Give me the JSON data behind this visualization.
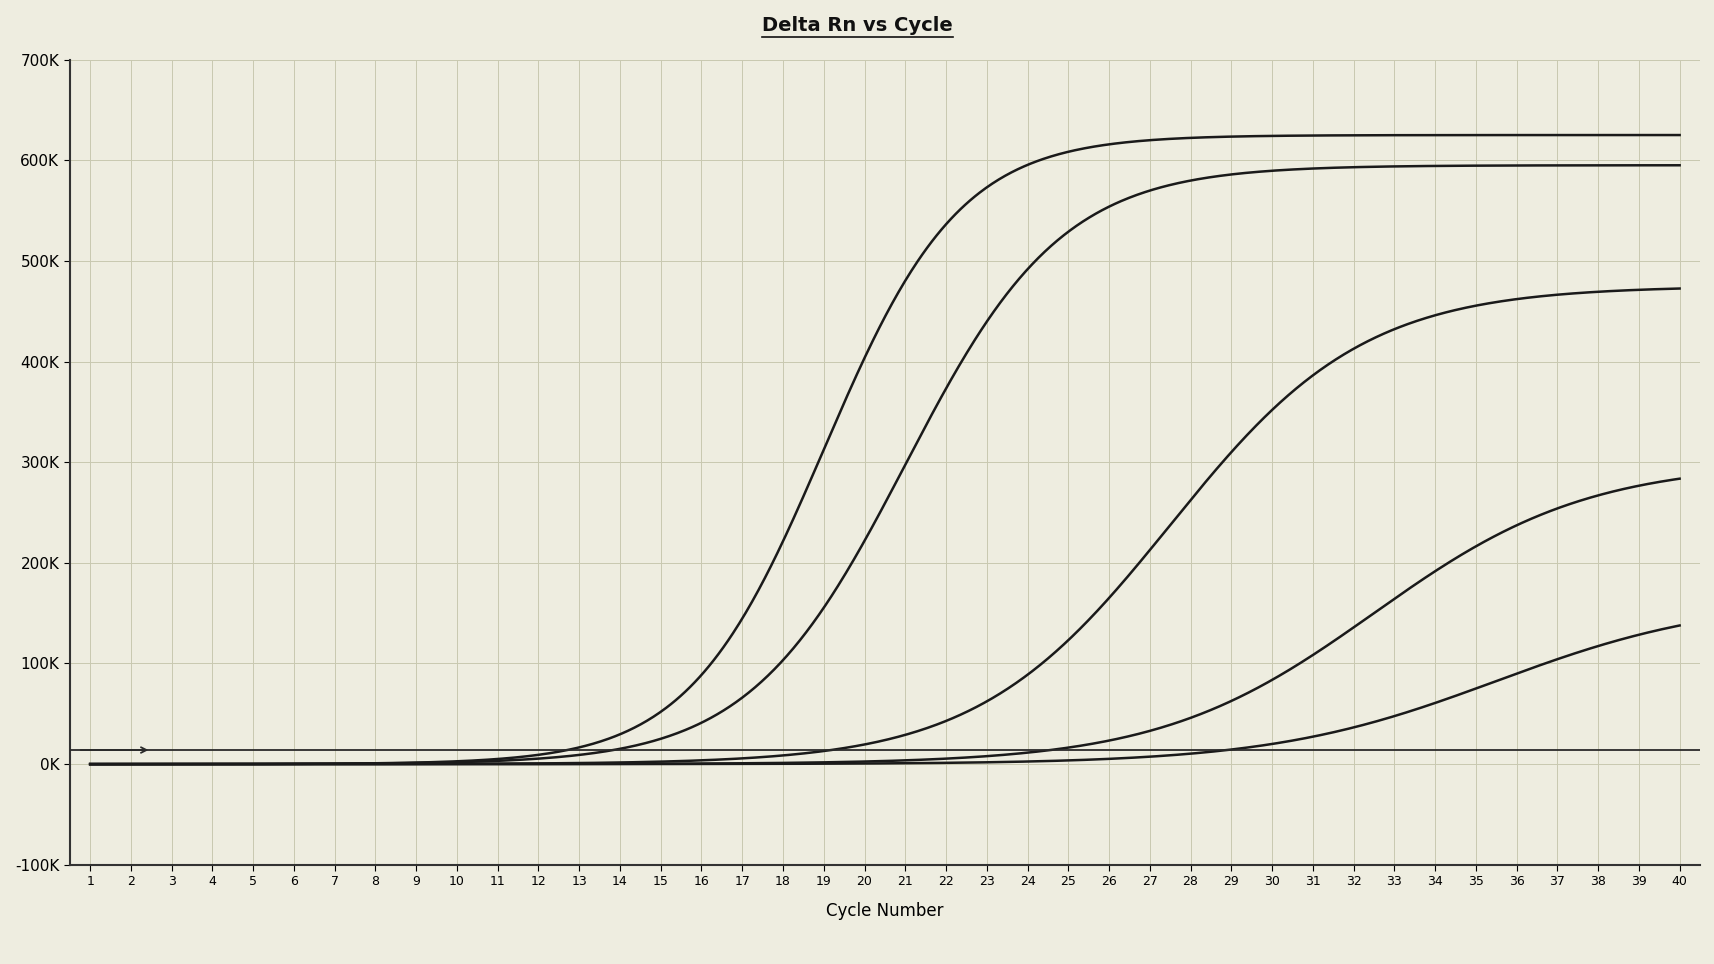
{
  "title": "Delta Rn vs Cycle",
  "xlabel": "Cycle Number",
  "xlim_min": 0.5,
  "xlim_max": 40.5,
  "ylim_min": -100000,
  "ylim_max": 700000,
  "yticks": [
    -100000,
    0,
    100000,
    200000,
    300000,
    400000,
    500000,
    600000,
    700000
  ],
  "ytick_labels": [
    "-100K",
    "0K",
    "100K",
    "200K",
    "300K",
    "400K",
    "500K",
    "600K",
    "700K"
  ],
  "xticks": [
    1,
    2,
    3,
    4,
    5,
    6,
    7,
    8,
    9,
    10,
    11,
    12,
    13,
    14,
    15,
    16,
    17,
    18,
    19,
    20,
    21,
    22,
    23,
    24,
    25,
    26,
    27,
    28,
    29,
    30,
    31,
    32,
    33,
    34,
    35,
    36,
    37,
    38,
    39,
    40
  ],
  "bg_color": "#eeede0",
  "grid_color": "#c8c8b0",
  "line_color": "#1a1a1a",
  "threshold_y": 14000,
  "curves": [
    {
      "x0": 19.0,
      "L": 625000,
      "k": 0.6
    },
    {
      "x0": 21.0,
      "L": 595000,
      "k": 0.52
    },
    {
      "x0": 27.5,
      "L": 475000,
      "k": 0.42
    },
    {
      "x0": 32.5,
      "L": 300000,
      "k": 0.38
    },
    {
      "x0": 35.5,
      "L": 165000,
      "k": 0.36
    }
  ]
}
